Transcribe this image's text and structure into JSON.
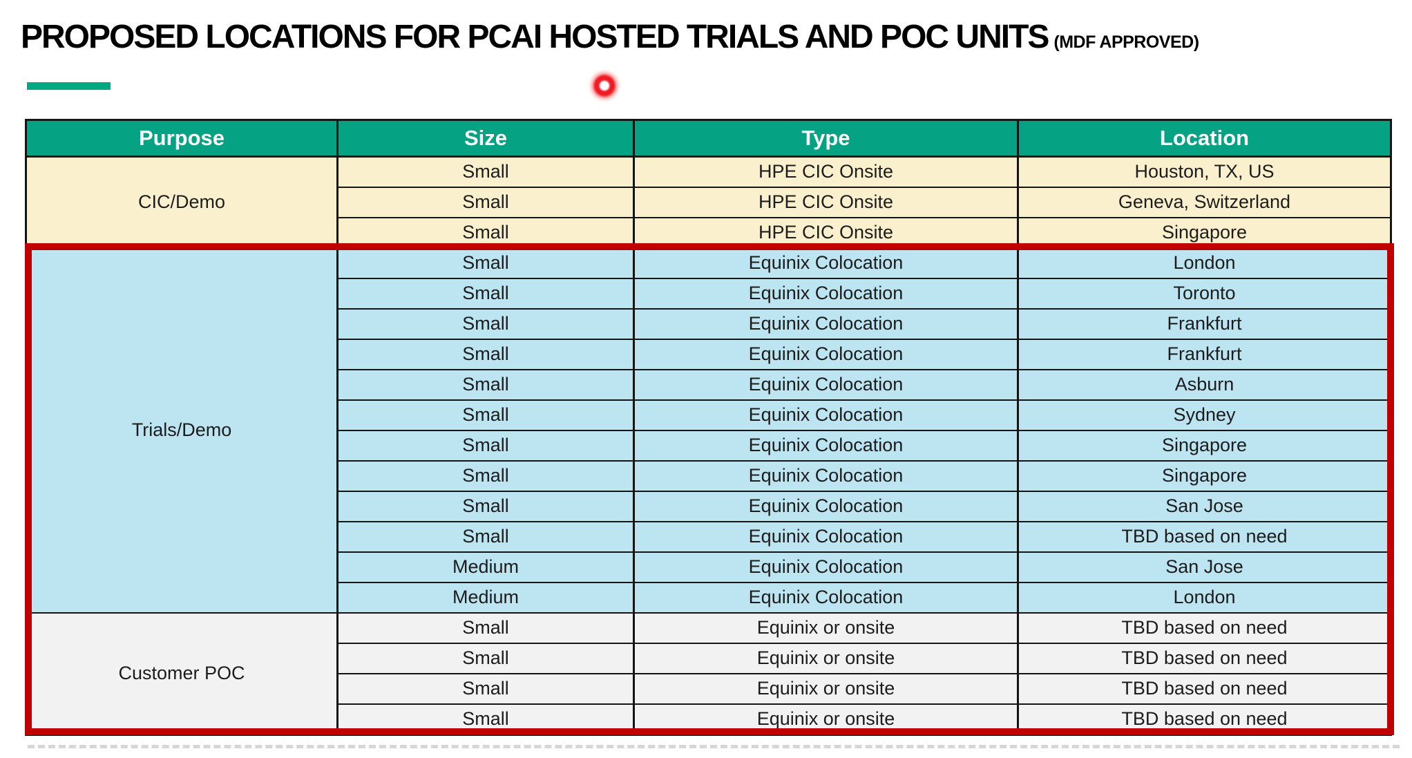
{
  "title": {
    "main": "PROPOSED LOCATIONS FOR PCAI HOSTED TRIALS AND POC UNITS",
    "suffix": "(MDF APPROVED)"
  },
  "accent": {
    "bar_color": "#01A982"
  },
  "pointer": {
    "color": "#EE1C24"
  },
  "table": {
    "headers": [
      "Purpose",
      "Size",
      "Type",
      "Location"
    ],
    "header_bg": "#05A284",
    "highlight_border_color": "#C00000",
    "sections": [
      {
        "purpose": "CIC/Demo",
        "bg": "#FBF0CE",
        "rows": [
          [
            "Small",
            "HPE CIC Onsite",
            "Houston, TX, US"
          ],
          [
            "Small",
            "HPE CIC Onsite",
            "Geneva, Switzerland"
          ],
          [
            "Small",
            "HPE CIC Onsite",
            "Singapore"
          ]
        ]
      },
      {
        "purpose": "Trials/Demo",
        "bg": "#BDE4F1",
        "rows": [
          [
            "Small",
            "Equinix Colocation",
            "London"
          ],
          [
            "Small",
            "Equinix Colocation",
            "Toronto"
          ],
          [
            "Small",
            "Equinix Colocation",
            "Frankfurt"
          ],
          [
            "Small",
            "Equinix Colocation",
            "Frankfurt"
          ],
          [
            "Small",
            "Equinix Colocation",
            "Asburn"
          ],
          [
            "Small",
            "Equinix Colocation",
            "Sydney"
          ],
          [
            "Small",
            "Equinix Colocation",
            "Singapore"
          ],
          [
            "Small",
            "Equinix Colocation",
            "Singapore"
          ],
          [
            "Small",
            "Equinix Colocation",
            "San Jose"
          ],
          [
            "Small",
            "Equinix Colocation",
            "TBD based on need"
          ],
          [
            "Medium",
            "Equinix Colocation",
            "San Jose"
          ],
          [
            "Medium",
            "Equinix Colocation",
            "London"
          ]
        ]
      },
      {
        "purpose": "Customer POC",
        "bg": "#F2F2F2",
        "rows": [
          [
            "Small",
            "Equinix or onsite",
            "TBD based on need"
          ],
          [
            "Small",
            "Equinix or onsite",
            "TBD based on need"
          ],
          [
            "Small",
            "Equinix or onsite",
            "TBD based on need"
          ],
          [
            "Small",
            "Equinix or onsite",
            "TBD based on need"
          ]
        ]
      }
    ]
  }
}
